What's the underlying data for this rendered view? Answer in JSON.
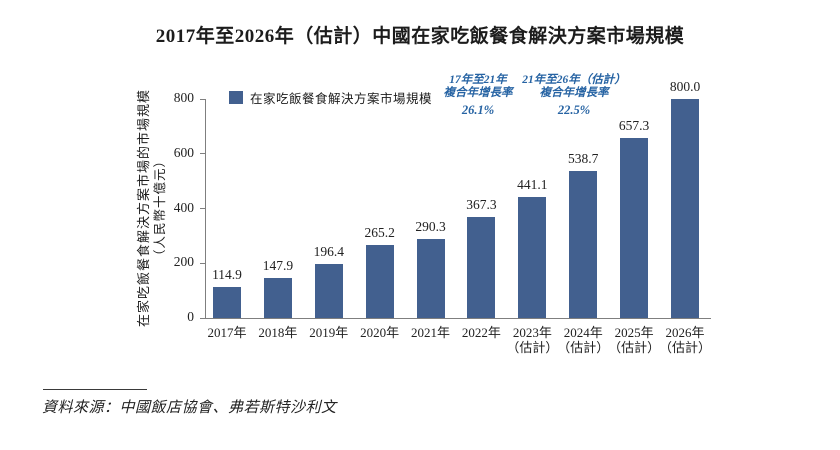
{
  "page": {
    "source_note": "資料來源：中國飯店協會、弗若斯特沙利文"
  },
  "chart_data": {
    "type": "bar",
    "title": "2017年至2026年（估計）中國在家吃飯餐食解決方案市場規模",
    "ylabel": "在家吃飯餐食解決方案市場的市場規模",
    "ylabel_unit": "（人民幣十億元）",
    "legend": [
      {
        "label": "在家吃飯餐食解決方案市場規模",
        "color": "#42608F"
      }
    ],
    "categories": [
      "2017年",
      "2018年",
      "2019年",
      "2020年",
      "2021年",
      "2022年",
      "2023年",
      "2024年",
      "2025年",
      "2026年"
    ],
    "category_sublabels": [
      "",
      "",
      "",
      "",
      "",
      "",
      "（估計）",
      "（估計）",
      "（估計）",
      "（估計）"
    ],
    "values": [
      114.9,
      147.9,
      196.4,
      265.2,
      290.3,
      367.3,
      441.1,
      538.7,
      657.3,
      800.0
    ],
    "value_labels": [
      "114.9",
      "147.9",
      "196.4",
      "265.2",
      "290.3",
      "367.3",
      "441.1",
      "538.7",
      "657.3",
      "800.0"
    ],
    "yticks": [
      0,
      200,
      400,
      600,
      800
    ],
    "ylim": [
      0,
      800
    ],
    "grid": false,
    "legend_position": "top-left",
    "bar_color": "#42608F",
    "axis_color": "#7f7f7f",
    "annotation_color": "#2663A3",
    "annotations": [
      {
        "line1": "17年至21年",
        "line2": "複合年增長率",
        "value": "26.1%"
      },
      {
        "line1": "21年至26年（估計）",
        "line2": "複合年增長率",
        "value": "22.5%"
      }
    ]
  }
}
